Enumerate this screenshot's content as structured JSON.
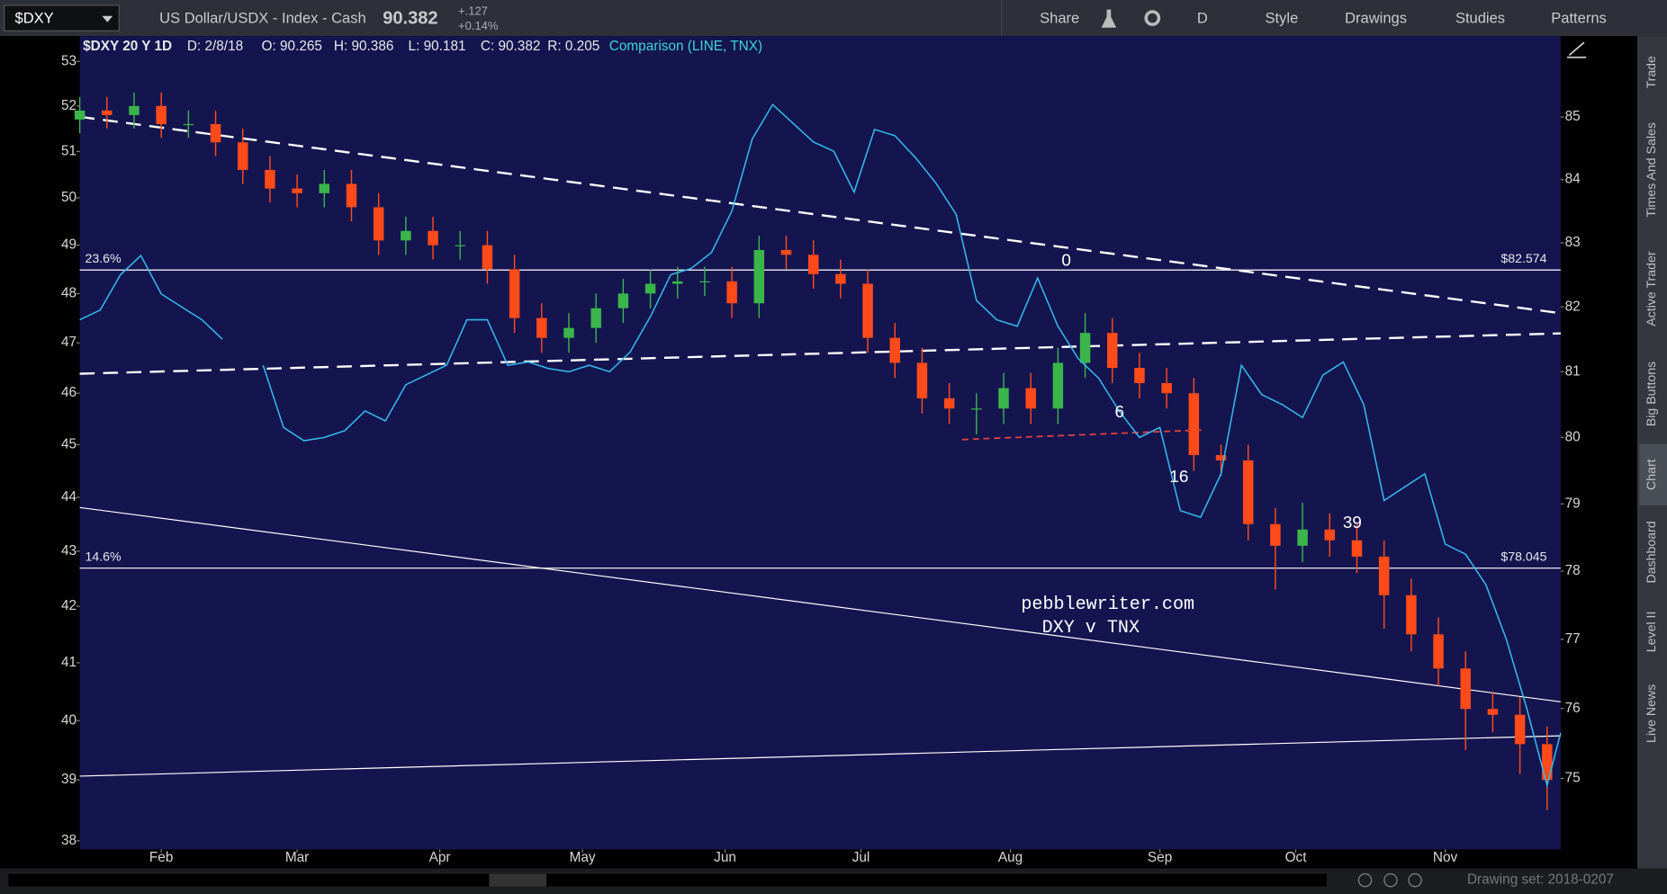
{
  "toolbar": {
    "symbol": "$DXY",
    "description": "US Dollar/USDX - Index - Cash",
    "last": "90.382",
    "change": "+.127",
    "change_pct": "+0.14%",
    "buttons": [
      "Share",
      "D",
      "Style",
      "Drawings",
      "Studies",
      "Patterns"
    ]
  },
  "legend": [
    "$DXY 20 Y 1D",
    "D: 2/8/18",
    "O: 90.265",
    "H: 90.386",
    "L: 90.181",
    "C: 90.382",
    "R: 0.205",
    "Comparison (LINE, TNX)"
  ],
  "sidebar": [
    "Trade",
    "Times And Sales",
    "Active Trader",
    "Big Buttons",
    "Chart",
    "Dashboard",
    "Level II",
    "Live News"
  ],
  "footer": "Drawing set: 2018-0207",
  "chart_data": {
    "type": "candlestick",
    "log_scale": true,
    "grid": false,
    "annotations": [
      "0",
      "6",
      "16",
      "39",
      "pebblewriter.com",
      "DXY v TNX"
    ],
    "levels": [
      {
        "name": "23.6%",
        "value": 82.574,
        "label": "$82.574"
      },
      {
        "name": "14.6%",
        "value": 78.045,
        "label": "$78.045"
      }
    ],
    "xlim": [
      0,
      218
    ],
    "xticks": [
      {
        "value": 12,
        "label": "Feb"
      },
      {
        "value": 32,
        "label": "Mar"
      },
      {
        "value": 53,
        "label": "Apr"
      },
      {
        "value": 74,
        "label": "May"
      },
      {
        "value": 95,
        "label": "Jun"
      },
      {
        "value": 115,
        "label": "Jul"
      },
      {
        "value": 137,
        "label": "Aug"
      },
      {
        "value": 159,
        "label": "Sep"
      },
      {
        "value": 179,
        "label": "Oct"
      },
      {
        "value": 201,
        "label": "Nov"
      }
    ],
    "ylim": [
      37.86,
      53.14
    ],
    "yticks": [
      38,
      39,
      40,
      41,
      42,
      43,
      44,
      45,
      46,
      47,
      48,
      49,
      50,
      51,
      52,
      53
    ],
    "y2lim": [
      74,
      86
    ],
    "y2ticks": [
      75,
      76,
      77,
      78,
      79,
      80,
      81,
      82,
      83,
      84,
      85
    ],
    "series": [
      {
        "name": "$DXY",
        "up_color": "#3ab54a",
        "down_color": "#ff4a1a",
        "x": [
          0,
          4,
          8,
          12,
          16,
          20,
          24,
          28,
          32,
          36,
          40,
          44,
          48,
          52,
          56,
          60,
          64,
          68,
          72,
          76,
          80,
          84,
          88,
          92,
          96,
          100,
          104,
          108,
          112,
          116,
          120,
          124,
          128,
          132,
          136,
          140,
          144,
          148,
          152,
          156,
          160,
          164,
          168,
          172,
          176,
          180,
          184,
          188,
          192,
          196,
          200,
          204,
          208,
          212,
          216
        ],
        "open": [
          51.7,
          51.9,
          51.8,
          52.0,
          51.6,
          51.6,
          51.2,
          50.6,
          50.2,
          50.1,
          50.3,
          49.8,
          49.1,
          49.3,
          49.0,
          49.0,
          48.5,
          47.5,
          47.1,
          47.3,
          47.7,
          48.0,
          48.2,
          48.25,
          48.25,
          47.8,
          48.9,
          48.8,
          48.4,
          48.2,
          47.1,
          46.6,
          45.9,
          45.7,
          45.7,
          46.1,
          45.7,
          46.6,
          47.2,
          46.5,
          46.2,
          46.0,
          44.8,
          44.7,
          43.5,
          43.1,
          43.4,
          43.2,
          42.9,
          42.2,
          41.5,
          40.9,
          40.2,
          40.1,
          39.6
        ],
        "high": [
          52.2,
          52.2,
          52.3,
          52.3,
          51.9,
          51.9,
          51.5,
          50.9,
          50.5,
          50.6,
          50.6,
          50.1,
          49.6,
          49.6,
          49.3,
          49.3,
          48.8,
          47.8,
          47.6,
          48.0,
          48.3,
          48.5,
          48.55,
          48.55,
          48.55,
          49.2,
          49.2,
          49.1,
          48.7,
          48.5,
          47.4,
          46.9,
          46.2,
          46.0,
          46.4,
          46.4,
          46.9,
          47.6,
          47.5,
          46.8,
          46.5,
          46.3,
          45.0,
          45.0,
          43.8,
          43.9,
          43.7,
          43.5,
          43.2,
          42.5,
          41.8,
          41.2,
          40.5,
          40.4,
          39.9
        ],
        "low": [
          51.4,
          51.5,
          51.5,
          51.3,
          51.3,
          50.9,
          50.3,
          49.9,
          49.8,
          49.8,
          49.5,
          48.8,
          48.8,
          48.7,
          48.7,
          48.2,
          47.2,
          46.8,
          46.8,
          47.0,
          47.4,
          47.7,
          47.9,
          47.95,
          47.5,
          47.5,
          48.5,
          48.1,
          47.9,
          46.8,
          46.3,
          45.6,
          45.4,
          45.2,
          45.4,
          45.4,
          45.4,
          46.3,
          46.2,
          45.9,
          45.7,
          44.5,
          44.4,
          43.2,
          42.3,
          42.8,
          42.9,
          42.6,
          41.6,
          41.2,
          40.6,
          39.5,
          39.8,
          39.1,
          38.5
        ],
        "close": [
          51.9,
          51.8,
          52.0,
          51.6,
          51.6,
          51.2,
          50.6,
          50.2,
          50.1,
          50.3,
          49.8,
          49.1,
          49.3,
          49.0,
          49.0,
          48.5,
          47.5,
          47.1,
          47.3,
          47.7,
          48.0,
          48.2,
          48.25,
          48.25,
          47.8,
          48.9,
          48.8,
          48.4,
          48.2,
          47.1,
          46.6,
          45.9,
          45.7,
          45.7,
          46.1,
          45.7,
          46.6,
          47.2,
          46.5,
          46.2,
          46.0,
          44.8,
          44.7,
          43.5,
          43.1,
          43.4,
          43.2,
          42.9,
          42.2,
          41.5,
          40.9,
          40.2,
          40.1,
          39.6,
          39.0
        ]
      },
      {
        "name": "TNX",
        "axis": "y2",
        "color": "#35b8ec",
        "x": [
          0,
          3,
          6,
          9,
          12,
          15,
          18,
          21,
          24,
          27,
          30,
          33,
          36,
          39,
          42,
          45,
          48,
          51,
          54,
          57,
          60,
          63,
          66,
          69,
          72,
          75,
          78,
          81,
          84,
          87,
          90,
          93,
          96,
          99,
          102,
          105,
          108,
          111,
          114,
          117,
          120,
          123,
          126,
          129,
          132,
          135,
          138,
          141,
          144,
          147,
          150,
          153,
          156,
          159,
          162,
          165,
          168,
          171,
          174,
          177,
          180,
          183,
          186,
          189,
          192,
          195,
          198,
          201,
          204,
          207,
          210,
          213,
          216,
          218
        ],
        "values": [
          81.8,
          81.95,
          82.5,
          82.8,
          82.2,
          82.0,
          81.8,
          81.5,
          null,
          81.1,
          80.15,
          79.95,
          80.0,
          80.1,
          80.4,
          80.25,
          80.8,
          80.95,
          81.1,
          81.8,
          81.8,
          81.1,
          81.15,
          81.05,
          81.0,
          81.1,
          81.0,
          81.3,
          81.85,
          82.5,
          82.6,
          82.85,
          83.5,
          84.65,
          85.2,
          84.9,
          84.6,
          84.45,
          83.8,
          84.8,
          84.7,
          84.35,
          83.95,
          83.45,
          82.1,
          81.8,
          81.7,
          82.45,
          81.7,
          81.2,
          80.9,
          80.4,
          80.0,
          80.15,
          78.9,
          78.8,
          79.45,
          81.1,
          80.65,
          80.5,
          80.3,
          80.95,
          81.15,
          80.5,
          79.05,
          79.25,
          79.45,
          78.4,
          78.25,
          77.8,
          77.0,
          76.0,
          74.9,
          75.65
        ]
      }
    ]
  }
}
